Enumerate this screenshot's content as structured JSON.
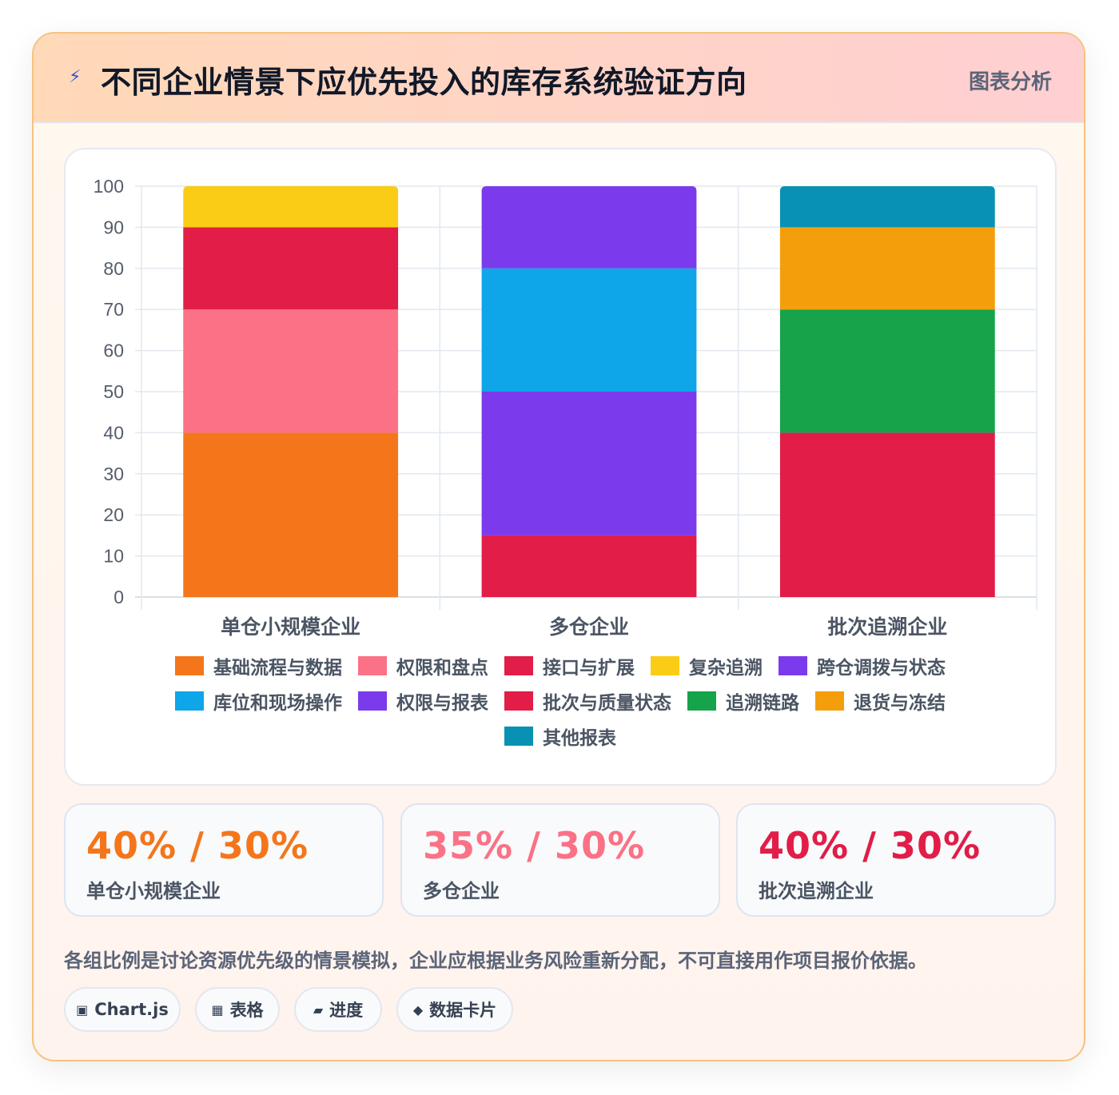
{
  "header": {
    "title": "不同企业情景下应优先投入的库存系统验证方向",
    "tag": "图表分析",
    "bolt_icon": "lightning-icon"
  },
  "chart_data": {
    "type": "bar",
    "stacked": true,
    "categories": [
      "单仓小规模企业",
      "多仓企业",
      "批次追溯企业"
    ],
    "ylim": [
      0,
      100
    ],
    "yticks": [
      0,
      10,
      20,
      30,
      40,
      50,
      60,
      70,
      80,
      90,
      100
    ],
    "grid": true,
    "legend_position": "bottom",
    "series": [
      {
        "name": "基础流程与数据",
        "color": "#f5761a",
        "values": [
          40,
          0,
          0
        ]
      },
      {
        "name": "权限和盘点",
        "color": "#fb7185",
        "values": [
          30,
          0,
          0
        ]
      },
      {
        "name": "接口与扩展",
        "color": "#e11d48",
        "values": [
          20,
          0,
          0
        ]
      },
      {
        "name": "复杂追溯",
        "color": "#facc15",
        "values": [
          10,
          0,
          0
        ]
      },
      {
        "name": "跨仓调拨与状态",
        "color": "#7c3aed",
        "values": [
          0,
          20,
          0
        ]
      },
      {
        "name": "库位和现场操作",
        "color": "#0ea5e9",
        "values": [
          0,
          30,
          0
        ]
      },
      {
        "name": "权限与报表",
        "color": "#7c3aed",
        "values": [
          0,
          35,
          0
        ]
      },
      {
        "name": "批次与质量状态",
        "color": "#e11d48",
        "values": [
          0,
          15,
          40
        ]
      },
      {
        "name": "追溯链路",
        "color": "#16a34a",
        "values": [
          0,
          0,
          30
        ]
      },
      {
        "name": "退货与冻结",
        "color": "#f59e0b",
        "values": [
          0,
          0,
          20
        ]
      },
      {
        "name": "其他报表",
        "color": "#0891b2",
        "values": [
          0,
          0,
          10
        ]
      }
    ],
    "stack_order": [
      [
        "基础流程与数据",
        "权限和盘点",
        "接口与扩展",
        "复杂追溯"
      ],
      [
        "批次与质量状态",
        "权限与报表",
        "库位和现场操作",
        "跨仓调拨与状态"
      ],
      [
        "批次与质量状态",
        "追溯链路",
        "退货与冻结",
        "其他报表"
      ]
    ]
  },
  "stats": [
    {
      "value": "40% / 30%",
      "label": "单仓小规模企业",
      "color": "#f5761a"
    },
    {
      "value": "35% / 30%",
      "label": "多仓企业",
      "color": "#fb7185"
    },
    {
      "value": "40% / 30%",
      "label": "批次追溯企业",
      "color": "#e11d48"
    }
  ],
  "note": "各组比例是讨论资源优先级的情景模拟，企业应根据业务风险重新分配，不可直接用作项目报价依据。",
  "pills": [
    {
      "icon": "▣",
      "icon_name": "chart-icon",
      "label": "Chart.js"
    },
    {
      "icon": "▦",
      "icon_name": "table-icon",
      "label": "表格"
    },
    {
      "icon": "▰",
      "icon_name": "progress-icon",
      "label": "进度"
    },
    {
      "icon": "◆",
      "icon_name": "data-card-icon",
      "label": "数据卡片"
    }
  ]
}
